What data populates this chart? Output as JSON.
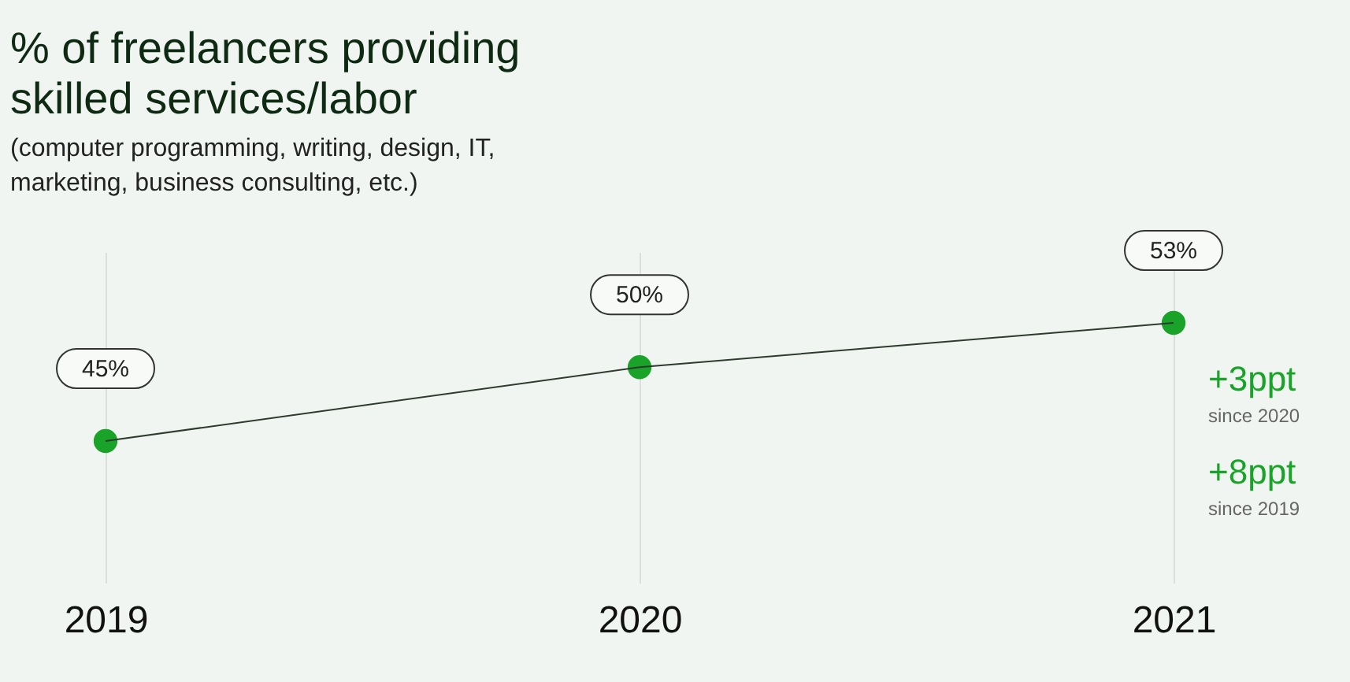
{
  "chart_data": {
    "type": "line",
    "title": "% of freelancers providing skilled services/labor",
    "subtitle": "(computer programming, writing, design, IT, marketing, business consulting, etc.)",
    "categories": [
      "2019",
      "2020",
      "2021"
    ],
    "series": [
      {
        "color": "#1aa329",
        "values": [
          45,
          50,
          53
        ],
        "value_labels": [
          "45%",
          "50%",
          "53%"
        ]
      }
    ],
    "data_labels": true,
    "marker": "circle",
    "line_style": "solid",
    "grid": "x",
    "annotations": [
      "+3ppt",
      "since 2020",
      "+8ppt",
      "since 2019"
    ]
  }
}
